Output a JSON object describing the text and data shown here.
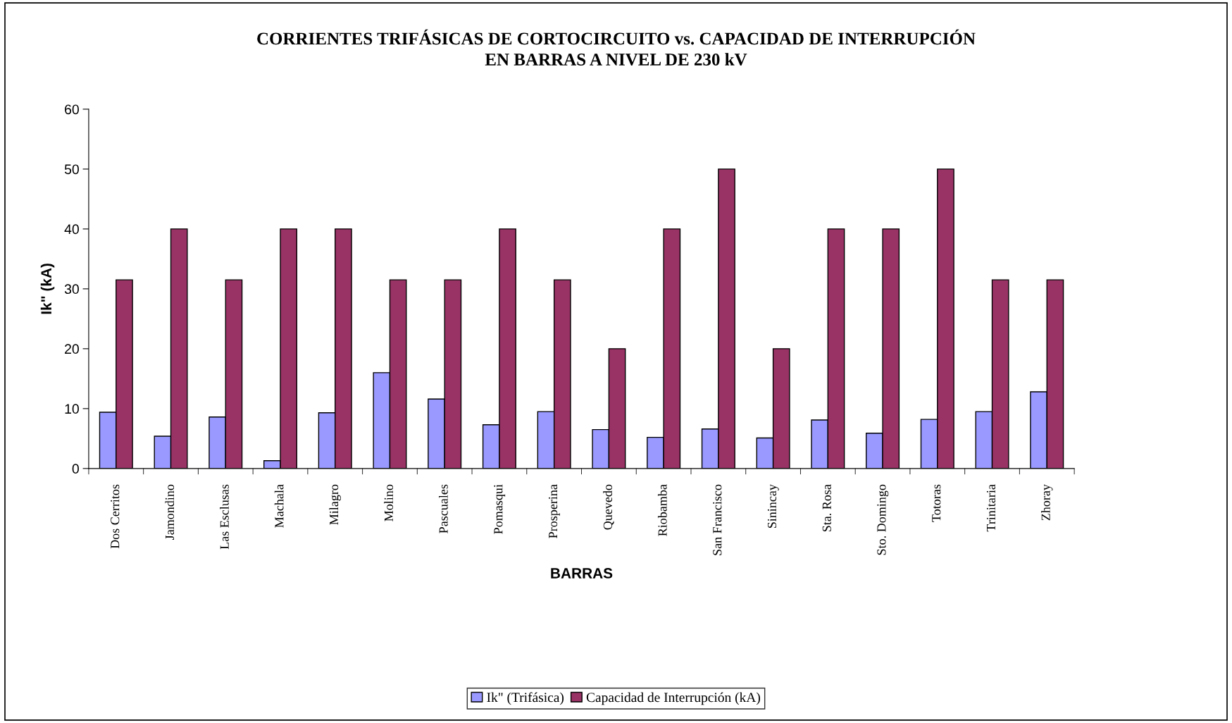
{
  "chart_data": {
    "type": "bar",
    "title": "CORRIENTES TRIFÁSICAS DE CORTOCIRCUITO vs. CAPACIDAD DE INTERRUPCIÓN\nEN BARRAS A NIVEL DE 230 kV",
    "xlabel": "BARRAS",
    "ylabel": "Ik\" (kA)",
    "categories": [
      "Dos Cerritos",
      "Jamondino",
      "Las Esclusas",
      "Machala",
      "Milagro",
      "Molino",
      "Pascuales",
      "Pomasqui",
      "Prosperina",
      "Quevedo",
      "Riobamba",
      "San Francisco",
      "Sinincay",
      "Sta. Rosa",
      "Sto. Domingo",
      "Totoras",
      "Trinitaria",
      "Zhoray"
    ],
    "series": [
      {
        "name": "Ik\" (Trifásica)",
        "color": "#9999ff",
        "values": [
          9.4,
          5.4,
          8.6,
          1.3,
          9.3,
          16.0,
          11.6,
          7.3,
          9.5,
          6.5,
          5.2,
          6.6,
          5.1,
          8.1,
          5.9,
          8.2,
          9.5,
          12.8
        ]
      },
      {
        "name": "Capacidad de Interrupción (kA)",
        "color": "#993366",
        "values": [
          31.5,
          40,
          31.5,
          40,
          40,
          31.5,
          31.5,
          40,
          31.5,
          20,
          40,
          50,
          20,
          40,
          40,
          50,
          31.5,
          31.5
        ]
      }
    ],
    "ylim": [
      0,
      60
    ],
    "yticks": [
      0,
      10,
      20,
      30,
      40,
      50,
      60
    ],
    "grid": false,
    "legend": "bottom"
  }
}
